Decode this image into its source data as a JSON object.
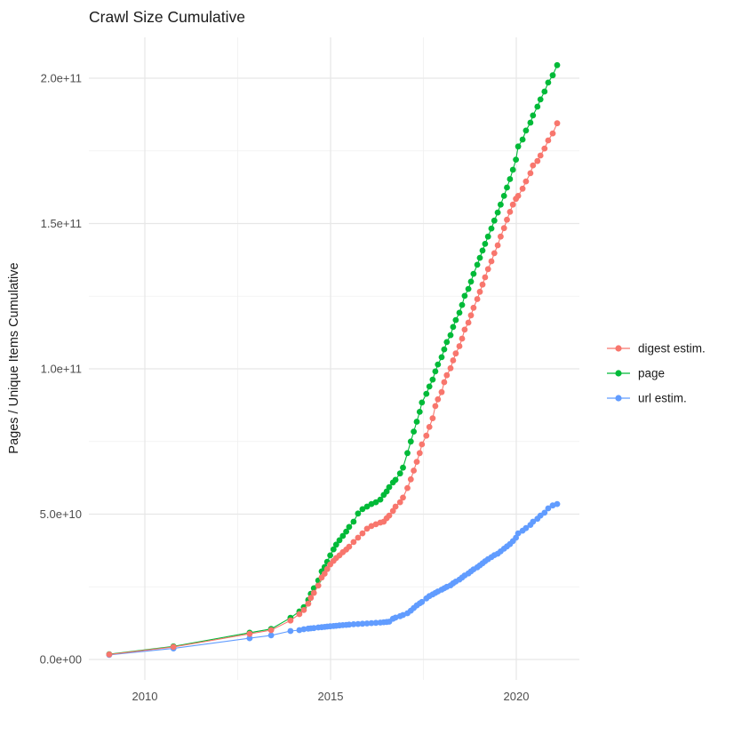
{
  "title": "Crawl Size Cumulative",
  "axes": {
    "y_label": "Pages / Unique Items Cumulative",
    "y_ticks": [
      {
        "label": "0.0e+00",
        "value": 0
      },
      {
        "label": "5.0e+10",
        "value": 50
      },
      {
        "label": "1.0e+11",
        "value": 100
      },
      {
        "label": "1.5e+11",
        "value": 150
      },
      {
        "label": "2.0e+11",
        "value": 200
      }
    ],
    "y_minor_values": [
      25,
      75,
      125,
      175
    ],
    "x_ticks": [
      {
        "label": "2010",
        "value": 2010
      },
      {
        "label": "2015",
        "value": 2015
      },
      {
        "label": "2020",
        "value": 2020
      }
    ],
    "x_minor_values": [
      2012.5,
      2017.5
    ]
  },
  "legend": [
    {
      "label": "digest estim.",
      "color": "#F8766D"
    },
    {
      "label": "page",
      "color": "#00BA38"
    },
    {
      "label": "url estim.",
      "color": "#619CFF"
    }
  ],
  "chart_data": {
    "type": "line",
    "title": "Crawl Size Cumulative",
    "xlabel": "",
    "ylabel": "Pages / Unique Items Cumulative",
    "values_unit": "billions (1e9) of pages / unique items, cumulative",
    "x_range": [
      2008.45,
      2021.7
    ],
    "ylim": [
      0,
      214
    ],
    "grid": "on",
    "legend_position": "right",
    "marker": "point",
    "series": [
      {
        "name": "page",
        "color": "#00BA38",
        "points": [
          [
            2009.04,
            1.8
          ],
          [
            2010.77,
            4.5
          ],
          [
            2012.82,
            9.2
          ],
          [
            2013.4,
            10.5
          ],
          [
            2013.92,
            14.3
          ],
          [
            2014.16,
            16.5
          ],
          [
            2014.28,
            18.0
          ],
          [
            2014.4,
            20.5
          ],
          [
            2014.47,
            22.6
          ],
          [
            2014.55,
            24.5
          ],
          [
            2014.67,
            27.2
          ],
          [
            2014.76,
            30.3
          ],
          [
            2014.84,
            31.8
          ],
          [
            2014.91,
            33.6
          ],
          [
            2014.99,
            35.8
          ],
          [
            2015.08,
            37.9
          ],
          [
            2015.15,
            39.5
          ],
          [
            2015.24,
            41.0
          ],
          [
            2015.33,
            42.5
          ],
          [
            2015.42,
            44.0
          ],
          [
            2015.5,
            45.6
          ],
          [
            2015.62,
            47.4
          ],
          [
            2015.74,
            50.2
          ],
          [
            2015.86,
            51.7
          ],
          [
            2015.98,
            52.6
          ],
          [
            2016.1,
            53.5
          ],
          [
            2016.22,
            54.1
          ],
          [
            2016.34,
            55.0
          ],
          [
            2016.43,
            56.6
          ],
          [
            2016.51,
            57.8
          ],
          [
            2016.58,
            59.3
          ],
          [
            2016.68,
            60.9
          ],
          [
            2016.75,
            61.8
          ],
          [
            2016.87,
            64.0
          ],
          [
            2016.95,
            66.0
          ],
          [
            2017.07,
            71.0
          ],
          [
            2017.16,
            75.0
          ],
          [
            2017.24,
            78.4
          ],
          [
            2017.32,
            81.8
          ],
          [
            2017.4,
            85.2
          ],
          [
            2017.46,
            88.4
          ],
          [
            2017.58,
            91.4
          ],
          [
            2017.66,
            93.9
          ],
          [
            2017.75,
            96.3
          ],
          [
            2017.82,
            99.1
          ],
          [
            2017.89,
            101.5
          ],
          [
            2017.99,
            104.0
          ],
          [
            2018.06,
            106.7
          ],
          [
            2018.13,
            109.2
          ],
          [
            2018.23,
            111.6
          ],
          [
            2018.3,
            114.4
          ],
          [
            2018.37,
            116.8
          ],
          [
            2018.47,
            119.3
          ],
          [
            2018.54,
            122.0
          ],
          [
            2018.61,
            125.1
          ],
          [
            2018.71,
            127.5
          ],
          [
            2018.78,
            130.0
          ],
          [
            2018.85,
            132.7
          ],
          [
            2018.95,
            135.8
          ],
          [
            2019.02,
            138.2
          ],
          [
            2019.09,
            140.7
          ],
          [
            2019.16,
            143.0
          ],
          [
            2019.24,
            145.5
          ],
          [
            2019.33,
            148.3
          ],
          [
            2019.41,
            151.0
          ],
          [
            2019.5,
            153.8
          ],
          [
            2019.58,
            156.5
          ],
          [
            2019.67,
            159.5
          ],
          [
            2019.75,
            162.4
          ],
          [
            2019.83,
            165.3
          ],
          [
            2019.91,
            168.5
          ],
          [
            2019.99,
            172.0
          ],
          [
            2020.05,
            176.5
          ],
          [
            2020.17,
            178.9
          ],
          [
            2020.26,
            182.0
          ],
          [
            2020.38,
            184.7
          ],
          [
            2020.45,
            187.2
          ],
          [
            2020.57,
            190.2
          ],
          [
            2020.65,
            192.7
          ],
          [
            2020.76,
            195.4
          ],
          [
            2020.86,
            198.5
          ],
          [
            2020.98,
            201.0
          ],
          [
            2021.1,
            204.5
          ]
        ]
      },
      {
        "name": "url estim.",
        "color": "#619CFF",
        "points": [
          [
            2009.04,
            1.6
          ],
          [
            2010.77,
            3.8
          ],
          [
            2012.82,
            7.3
          ],
          [
            2013.4,
            8.3
          ],
          [
            2013.92,
            9.8
          ],
          [
            2014.16,
            10.1
          ],
          [
            2014.28,
            10.4
          ],
          [
            2014.4,
            10.6
          ],
          [
            2014.47,
            10.7
          ],
          [
            2014.55,
            10.8
          ],
          [
            2014.67,
            11.0
          ],
          [
            2014.76,
            11.1
          ],
          [
            2014.84,
            11.2
          ],
          [
            2014.91,
            11.3
          ],
          [
            2014.99,
            11.4
          ],
          [
            2015.08,
            11.5
          ],
          [
            2015.15,
            11.6
          ],
          [
            2015.24,
            11.7
          ],
          [
            2015.33,
            11.8
          ],
          [
            2015.42,
            11.9
          ],
          [
            2015.5,
            12.0
          ],
          [
            2015.62,
            12.1
          ],
          [
            2015.74,
            12.2
          ],
          [
            2015.86,
            12.3
          ],
          [
            2015.98,
            12.4
          ],
          [
            2016.1,
            12.5
          ],
          [
            2016.22,
            12.6
          ],
          [
            2016.34,
            12.7
          ],
          [
            2016.43,
            12.8
          ],
          [
            2016.51,
            12.9
          ],
          [
            2016.58,
            13.0
          ],
          [
            2016.68,
            14.0
          ],
          [
            2016.75,
            14.4
          ],
          [
            2016.87,
            14.9
          ],
          [
            2016.95,
            15.3
          ],
          [
            2017.07,
            15.9
          ],
          [
            2017.16,
            16.8
          ],
          [
            2017.24,
            17.7
          ],
          [
            2017.32,
            18.6
          ],
          [
            2017.4,
            19.3
          ],
          [
            2017.46,
            19.8
          ],
          [
            2017.58,
            21.0
          ],
          [
            2017.66,
            21.8
          ],
          [
            2017.75,
            22.4
          ],
          [
            2017.82,
            22.9
          ],
          [
            2017.89,
            23.4
          ],
          [
            2017.99,
            24.0
          ],
          [
            2018.06,
            24.5
          ],
          [
            2018.13,
            25.0
          ],
          [
            2018.23,
            25.5
          ],
          [
            2018.3,
            26.2
          ],
          [
            2018.37,
            26.8
          ],
          [
            2018.47,
            27.5
          ],
          [
            2018.54,
            28.2
          ],
          [
            2018.61,
            28.9
          ],
          [
            2018.71,
            29.6
          ],
          [
            2018.78,
            30.3
          ],
          [
            2018.85,
            31.0
          ],
          [
            2018.95,
            31.7
          ],
          [
            2019.02,
            32.4
          ],
          [
            2019.09,
            33.1
          ],
          [
            2019.16,
            33.8
          ],
          [
            2019.24,
            34.5
          ],
          [
            2019.33,
            35.2
          ],
          [
            2019.41,
            35.9
          ],
          [
            2019.5,
            36.4
          ],
          [
            2019.58,
            37.2
          ],
          [
            2019.67,
            38.1
          ],
          [
            2019.75,
            38.9
          ],
          [
            2019.83,
            39.7
          ],
          [
            2019.91,
            40.7
          ],
          [
            2019.99,
            41.9
          ],
          [
            2020.05,
            43.4
          ],
          [
            2020.17,
            44.3
          ],
          [
            2020.26,
            45.2
          ],
          [
            2020.38,
            46.3
          ],
          [
            2020.45,
            47.4
          ],
          [
            2020.57,
            48.4
          ],
          [
            2020.65,
            49.5
          ],
          [
            2020.76,
            50.5
          ],
          [
            2020.86,
            52.0
          ],
          [
            2020.98,
            53.0
          ],
          [
            2021.1,
            53.5
          ]
        ]
      },
      {
        "name": "digest estim.",
        "color": "#F8766D",
        "points": [
          [
            2009.04,
            1.7
          ],
          [
            2010.77,
            4.3
          ],
          [
            2012.82,
            8.8
          ],
          [
            2013.4,
            10.1
          ],
          [
            2013.92,
            13.4
          ],
          [
            2014.16,
            15.6
          ],
          [
            2014.28,
            17.0
          ],
          [
            2014.4,
            19.2
          ],
          [
            2014.47,
            21.2
          ],
          [
            2014.55,
            22.9
          ],
          [
            2014.67,
            25.4
          ],
          [
            2014.76,
            28.2
          ],
          [
            2014.84,
            29.5
          ],
          [
            2014.91,
            31.1
          ],
          [
            2014.99,
            32.7
          ],
          [
            2015.08,
            33.9
          ],
          [
            2015.15,
            34.9
          ],
          [
            2015.24,
            35.8
          ],
          [
            2015.33,
            36.9
          ],
          [
            2015.42,
            37.8
          ],
          [
            2015.5,
            38.8
          ],
          [
            2015.62,
            40.4
          ],
          [
            2015.74,
            41.9
          ],
          [
            2015.86,
            43.4
          ],
          [
            2015.98,
            45.0
          ],
          [
            2016.1,
            45.9
          ],
          [
            2016.22,
            46.5
          ],
          [
            2016.34,
            47.1
          ],
          [
            2016.43,
            47.4
          ],
          [
            2016.51,
            48.6
          ],
          [
            2016.58,
            49.5
          ],
          [
            2016.68,
            51.1
          ],
          [
            2016.75,
            52.6
          ],
          [
            2016.87,
            54.1
          ],
          [
            2016.95,
            55.7
          ],
          [
            2017.07,
            59.0
          ],
          [
            2017.16,
            62.0
          ],
          [
            2017.24,
            65.0
          ],
          [
            2017.32,
            68.0
          ],
          [
            2017.4,
            71.0
          ],
          [
            2017.46,
            74.0
          ],
          [
            2017.58,
            77.0
          ],
          [
            2017.66,
            80.0
          ],
          [
            2017.75,
            83.0
          ],
          [
            2017.82,
            87.2
          ],
          [
            2017.89,
            89.5
          ],
          [
            2017.99,
            92.0
          ],
          [
            2018.06,
            95.4
          ],
          [
            2018.13,
            97.8
          ],
          [
            2018.23,
            100.2
          ],
          [
            2018.3,
            102.9
          ],
          [
            2018.37,
            105.3
          ],
          [
            2018.47,
            107.8
          ],
          [
            2018.54,
            110.4
          ],
          [
            2018.61,
            113.5
          ],
          [
            2018.71,
            115.9
          ],
          [
            2018.78,
            118.4
          ],
          [
            2018.85,
            121.0
          ],
          [
            2018.95,
            124.0
          ],
          [
            2019.02,
            126.5
          ],
          [
            2019.09,
            129.0
          ],
          [
            2019.16,
            131.5
          ],
          [
            2019.24,
            134.3
          ],
          [
            2019.33,
            137.0
          ],
          [
            2019.41,
            139.8
          ],
          [
            2019.5,
            142.5
          ],
          [
            2019.58,
            145.5
          ],
          [
            2019.67,
            148.4
          ],
          [
            2019.75,
            151.3
          ],
          [
            2019.83,
            154.0
          ],
          [
            2019.91,
            156.5
          ],
          [
            2019.99,
            158.5
          ],
          [
            2020.05,
            159.5
          ],
          [
            2020.17,
            162.0
          ],
          [
            2020.26,
            164.5
          ],
          [
            2020.38,
            167.3
          ],
          [
            2020.45,
            170.0
          ],
          [
            2020.57,
            171.5
          ],
          [
            2020.65,
            173.4
          ],
          [
            2020.76,
            175.8
          ],
          [
            2020.86,
            178.6
          ],
          [
            2020.98,
            181.0
          ],
          [
            2021.1,
            184.5
          ]
        ]
      }
    ]
  }
}
